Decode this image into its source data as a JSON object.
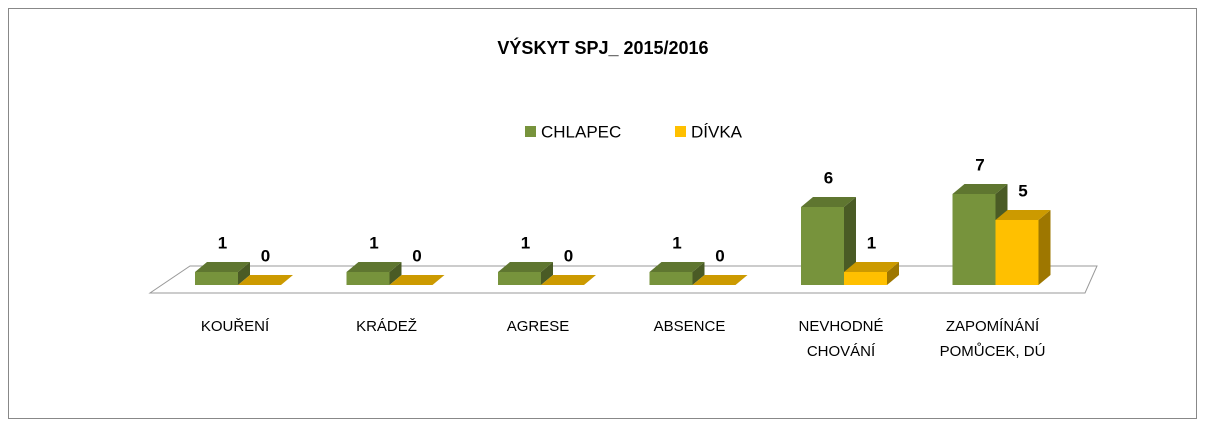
{
  "chart_data": {
    "type": "bar3d",
    "title": "VÝSKYT SPJ_ 2015/2016",
    "categories": [
      "KOUŘENÍ",
      "KRÁDEŽ",
      "AGRESE",
      "ABSENCE",
      "NEVHODNÉ CHOVÁNÍ",
      "ZAPOMÍNÁNÍ POMŮCEK, DÚ"
    ],
    "series": [
      {
        "name": "CHLAPEC",
        "color": "#77933c",
        "values": [
          1,
          1,
          1,
          1,
          6,
          7
        ]
      },
      {
        "name": "DÍVKA",
        "color": "#ffc000",
        "values": [
          0,
          0,
          0,
          0,
          1,
          5
        ]
      }
    ],
    "legend": "top"
  }
}
